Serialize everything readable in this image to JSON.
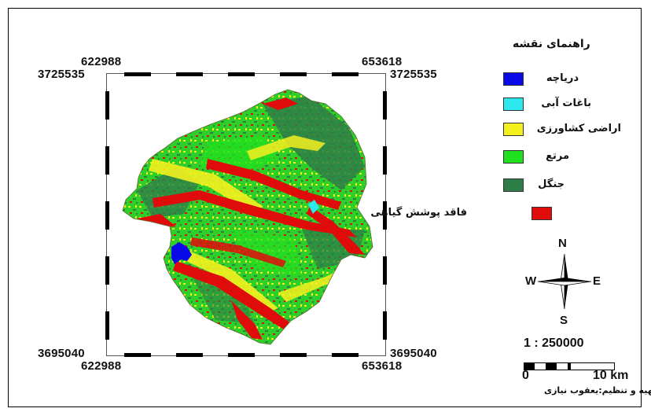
{
  "legend": {
    "title": "راهنمای نقشه",
    "items": [
      {
        "label": "دریاچه",
        "color": "#0a0ae6"
      },
      {
        "label": "باغات آبی",
        "color": "#2ee8f0"
      },
      {
        "label": "اراضی کشاورزی",
        "color": "#f4f01e"
      },
      {
        "label": "مرتع",
        "color": "#1fe01f"
      },
      {
        "label": "جنگل",
        "color": "#2e7d48"
      },
      {
        "label": "فاقد پوشش گیاهی",
        "color": "#e00c0c"
      }
    ]
  },
  "coords": {
    "x_left_top": "622988",
    "x_right_top": "653618",
    "y_top_left": "3725535",
    "y_top_right": "3725535",
    "y_bottom_left": "3695040",
    "y_bottom_right": "3695040",
    "x_left_bottom": "622988",
    "x_right_bottom": "653618"
  },
  "compass": {
    "n": "N",
    "s": "S",
    "e": "E",
    "w": "W"
  },
  "scale": {
    "ratio": "1 : 250000",
    "start": "0",
    "end": "10 km"
  },
  "credit": "تهیه و تنظیم:یعقوب نیازی"
}
